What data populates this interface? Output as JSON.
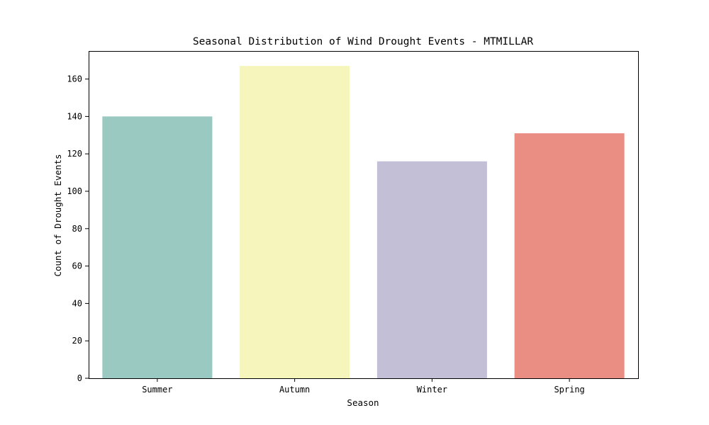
{
  "chart_data": {
    "type": "bar",
    "title": "Seasonal Distribution of Wind Drought Events - MTMILLAR",
    "xlabel": "Season",
    "ylabel": "Count of Drought Events",
    "categories": [
      "Summer",
      "Autumn",
      "Winter",
      "Spring"
    ],
    "values": [
      140,
      167,
      116,
      131
    ],
    "colors": [
      "#99c9c0",
      "#f6f6bc",
      "#c2bfd7",
      "#ea8d83"
    ],
    "ylim": [
      0,
      175
    ],
    "yticks": [
      0,
      20,
      40,
      60,
      80,
      100,
      120,
      140,
      160
    ],
    "grid": false,
    "legend": "none"
  }
}
